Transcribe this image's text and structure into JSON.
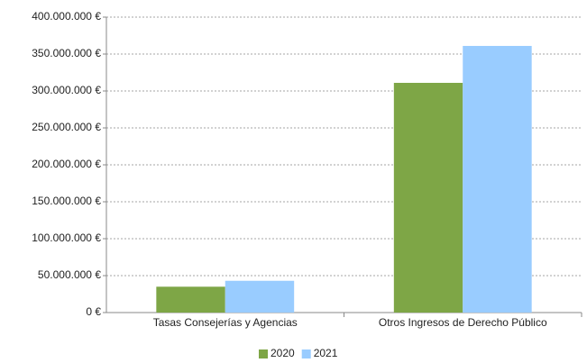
{
  "chart_data": {
    "type": "bar",
    "categories": [
      "Tasas Consejerías y Agencias",
      "Otros Ingresos de Derecho Público"
    ],
    "series": [
      {
        "name": "2020",
        "color": "#7ea646",
        "values": [
          35000000,
          311000000
        ]
      },
      {
        "name": "2021",
        "color": "#99ccff",
        "values": [
          43000000,
          361000000
        ]
      }
    ],
    "ylim": [
      0,
      400000000
    ],
    "yticks": [
      {
        "value": 0,
        "label": "0 €"
      },
      {
        "value": 50000000,
        "label": "50.000.000 €"
      },
      {
        "value": 100000000,
        "label": "100.000.000 €"
      },
      {
        "value": 150000000,
        "label": "150.000.000 €"
      },
      {
        "value": 200000000,
        "label": "200.000.000 €"
      },
      {
        "value": 250000000,
        "label": "250.000.000 €"
      },
      {
        "value": 300000000,
        "label": "300.000.000 €"
      },
      {
        "value": 350000000,
        "label": "350.000.000 €"
      },
      {
        "value": 400000000,
        "label": "400.000.000 €"
      }
    ],
    "grid": true,
    "legend": "bottom"
  }
}
